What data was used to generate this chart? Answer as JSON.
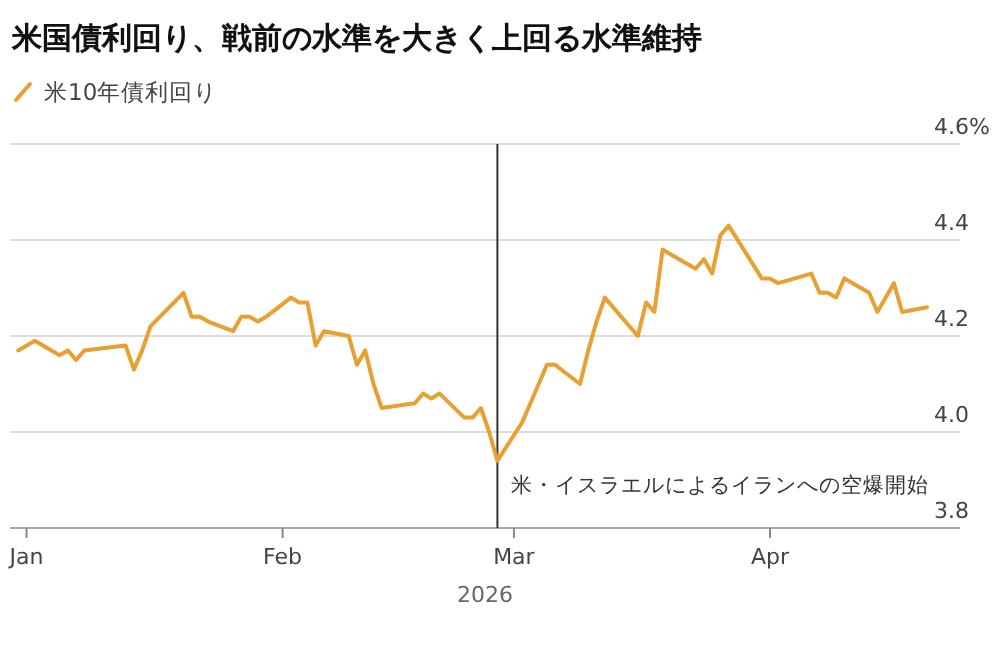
{
  "chart_data": {
    "type": "line",
    "title": "米国債利回り、戦前の水準を大きく上回る水準維持",
    "xlabel": "2026",
    "legend": "top left",
    "grid": "y",
    "marker": "none",
    "line_style": "solid",
    "x": [
      "2025-12-31",
      "2026-01-02",
      "2026-01-05",
      "2026-01-06",
      "2026-01-07",
      "2026-01-08",
      "2026-01-13",
      "2026-01-14",
      "2026-01-15",
      "2026-01-16",
      "2026-01-20",
      "2026-01-21",
      "2026-01-22",
      "2026-01-23",
      "2026-01-26",
      "2026-01-27",
      "2026-01-28",
      "2026-01-29",
      "2026-01-30",
      "2026-02-02",
      "2026-02-03",
      "2026-02-04",
      "2026-02-05",
      "2026-02-06",
      "2026-02-09",
      "2026-02-10",
      "2026-02-11",
      "2026-02-12",
      "2026-02-13",
      "2026-02-17",
      "2026-02-18",
      "2026-02-19",
      "2026-02-20",
      "2026-02-23",
      "2026-02-24",
      "2026-02-25",
      "2026-02-26",
      "2026-02-27",
      "2026-03-02",
      "2026-03-03",
      "2026-03-05",
      "2026-03-06",
      "2026-03-09",
      "2026-03-10",
      "2026-03-11",
      "2026-03-12",
      "2026-03-16",
      "2026-03-17",
      "2026-03-18",
      "2026-03-19",
      "2026-03-20",
      "2026-03-23",
      "2026-03-24",
      "2026-03-25",
      "2026-03-26",
      "2026-03-27",
      "2026-03-31",
      "2026-04-01",
      "2026-04-02",
      "2026-04-06",
      "2026-04-07",
      "2026-04-08",
      "2026-04-09",
      "2026-04-10",
      "2026-04-13",
      "2026-04-14",
      "2026-04-16",
      "2026-04-17",
      "2026-04-20"
    ],
    "series": [
      {
        "name": "米10年債利回り",
        "color": "#e8a033",
        "values": [
          4.17,
          4.19,
          4.16,
          4.17,
          4.15,
          4.17,
          4.18,
          4.13,
          4.17,
          4.22,
          4.29,
          4.24,
          4.24,
          4.23,
          4.21,
          4.24,
          4.24,
          4.23,
          4.24,
          4.28,
          4.27,
          4.27,
          4.18,
          4.21,
          4.2,
          4.14,
          4.17,
          4.1,
          4.05,
          4.06,
          4.08,
          4.07,
          4.08,
          4.03,
          4.03,
          4.05,
          4.0,
          3.94,
          4.02,
          4.06,
          4.14,
          4.14,
          4.1,
          4.17,
          4.23,
          4.28,
          4.2,
          4.27,
          4.25,
          4.38,
          4.37,
          4.34,
          4.36,
          4.33,
          4.41,
          4.43,
          4.32,
          4.32,
          4.31,
          4.33,
          4.29,
          4.29,
          4.28,
          4.32,
          4.29,
          4.25,
          4.31,
          4.25,
          4.26
        ]
      }
    ],
    "xlim": [
      "2025-12-30",
      "2026-04-24"
    ],
    "xticks": [
      {
        "value": "2026-01-01",
        "label": "Jan"
      },
      {
        "value": "2026-02-01",
        "label": "Feb"
      },
      {
        "value": "2026-03-01",
        "label": "Mar"
      },
      {
        "value": "2026-04-01",
        "label": "Apr"
      }
    ],
    "ylim": [
      3.8,
      4.6
    ],
    "yticks": [
      3.8,
      {
        "value": 4,
        "label": "4.0"
      },
      4.2,
      4.4,
      {
        "value": 4.6,
        "label": "4.6%"
      }
    ],
    "ref_lines": [
      {
        "axis": "x",
        "value": "2026-02-27",
        "label": "米・イスラエルによるイランへの空爆開始",
        "color": "#333333"
      }
    ]
  }
}
